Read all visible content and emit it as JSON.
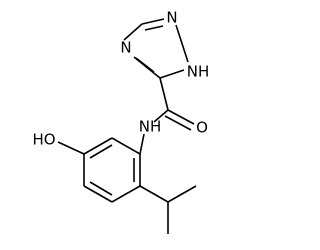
{
  "atoms": {
    "triazole_n4": "N",
    "triazole_n2": "N",
    "triazole_n1": "NH",
    "amide_n": "NH",
    "carbonyl_o": "O",
    "hydroxyl": "HO"
  }
}
